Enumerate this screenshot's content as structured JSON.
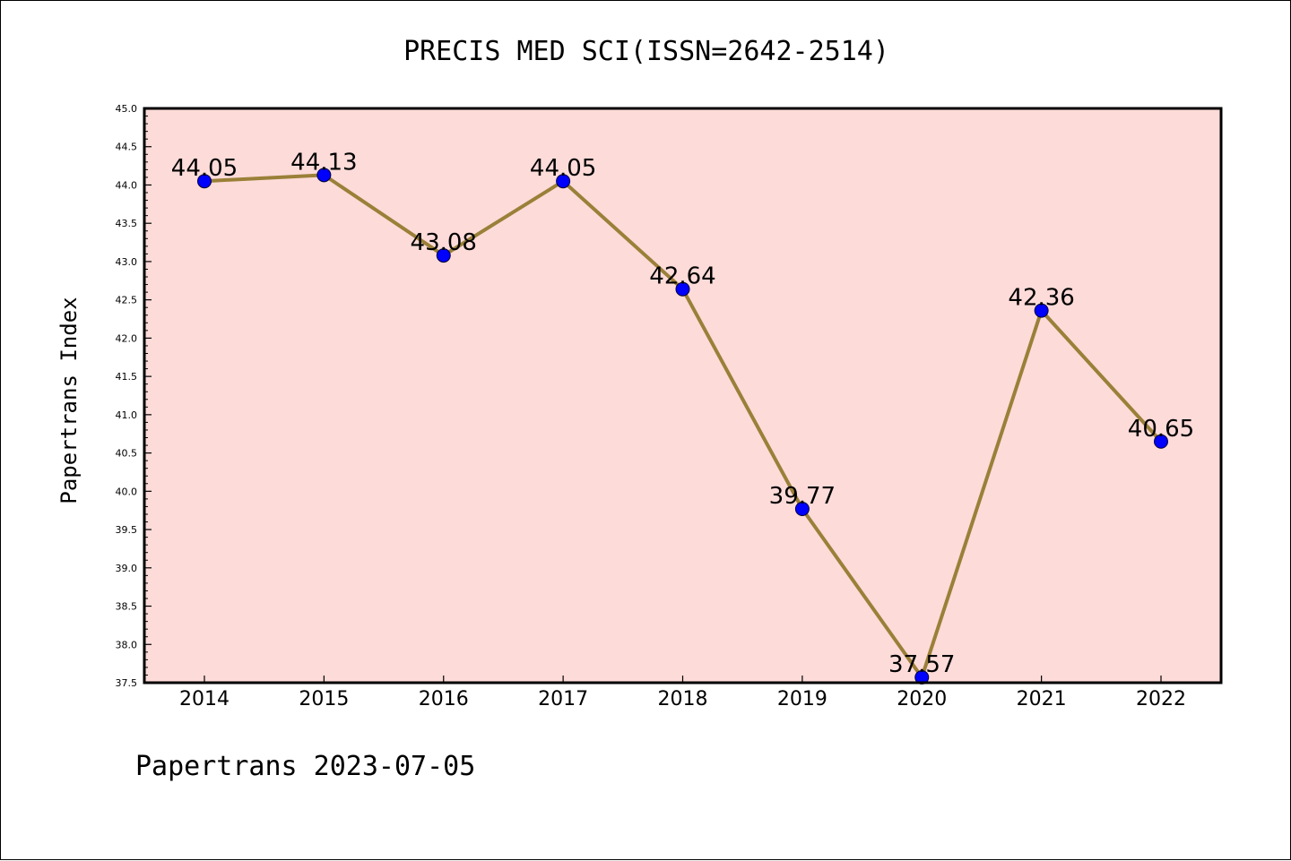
{
  "chart_data": {
    "type": "line",
    "title": "PRECIS MED SCI(ISSN=2642-2514)",
    "xlabel": "",
    "ylabel": "Papertrans Index",
    "categories": [
      "2014",
      "2015",
      "2016",
      "2017",
      "2018",
      "2019",
      "2020",
      "2021",
      "2022"
    ],
    "series": [
      {
        "values": [
          44.05,
          44.13,
          43.08,
          44.05,
          42.64,
          39.77,
          37.57,
          42.36,
          40.65
        ],
        "data_labels": [
          "44.05",
          "44.13",
          "43.08",
          "44.05",
          "42.64",
          "39.77",
          "37.57",
          "42.36",
          "40.65"
        ]
      }
    ],
    "ylim": [
      37.5,
      45.0
    ],
    "yticks": [
      "37.5",
      "38.0",
      "38.5",
      "39.0",
      "39.5",
      "40.0",
      "40.5",
      "41.0",
      "41.5",
      "42.0",
      "42.5",
      "43.0",
      "43.5",
      "44.0",
      "44.5",
      "45.0"
    ],
    "grid": false,
    "legend": "none",
    "colors": {
      "plot_background": "#fddbd9",
      "line": "#9a8038",
      "marker": "#0000ff",
      "axis": "#000000"
    }
  },
  "footer": "Papertrans 2023-07-05"
}
